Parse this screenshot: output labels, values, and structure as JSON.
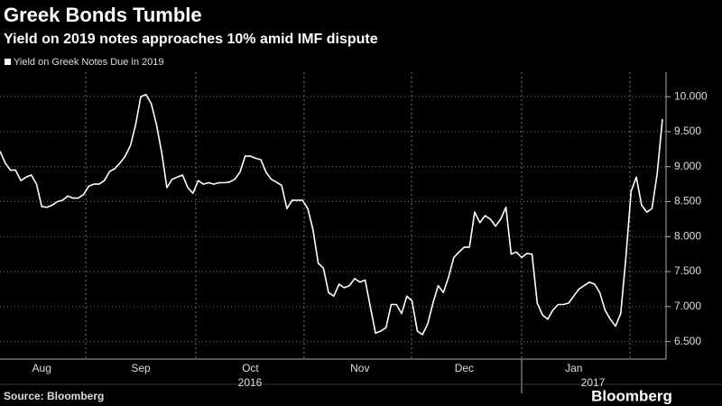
{
  "chart_data": {
    "type": "line",
    "title": "Greek Bonds Tumble",
    "subtitle": "Yield on 2019 notes approaches 10% amid IMF dispute",
    "source": "Source: Bloomberg",
    "brand": "Bloomberg",
    "categories": [
      null,
      null,
      null,
      null,
      null,
      null,
      null,
      null,
      "Aug",
      null,
      null,
      null,
      null,
      null,
      null,
      null,
      null,
      null,
      null,
      null,
      null,
      null,
      null,
      null,
      null,
      null,
      null,
      "Sep",
      null,
      null,
      null,
      null,
      null,
      null,
      null,
      null,
      null,
      null,
      null,
      null,
      null,
      null,
      null,
      null,
      null,
      null,
      null,
      null,
      "Oct",
      null,
      null,
      null,
      null,
      null,
      null,
      null,
      null,
      null,
      null,
      null,
      null,
      null,
      null,
      null,
      null,
      null,
      null,
      null,
      null,
      "Nov",
      null,
      null,
      null,
      null,
      null,
      null,
      null,
      null,
      null,
      null,
      null,
      null,
      null,
      null,
      null,
      null,
      null,
      null,
      null,
      "Dec",
      null,
      null,
      null,
      null,
      null,
      null,
      null,
      null,
      null,
      null,
      null,
      null,
      null,
      null,
      null,
      null,
      null,
      null,
      null,
      null,
      "Jan",
      null,
      null,
      null,
      null,
      null,
      null,
      null,
      null,
      null,
      null,
      null,
      null,
      null,
      null,
      null,
      null,
      null
    ],
    "x_groups": [
      "2016",
      "2017"
    ],
    "series": [
      {
        "name": "Yield on Greek Notes Due in 2019",
        "color": "#ffffff",
        "values": [
          9.22,
          9.05,
          8.95,
          8.95,
          8.8,
          8.85,
          8.88,
          8.75,
          8.43,
          8.42,
          8.45,
          8.5,
          8.52,
          8.58,
          8.55,
          8.55,
          8.6,
          8.72,
          8.75,
          8.75,
          8.8,
          8.93,
          8.97,
          9.05,
          9.15,
          9.3,
          9.6,
          10.0,
          10.03,
          9.9,
          9.6,
          9.2,
          8.7,
          8.82,
          8.85,
          8.88,
          8.7,
          8.62,
          8.8,
          8.75,
          8.77,
          8.75,
          8.77,
          8.77,
          8.78,
          8.82,
          8.92,
          9.15,
          9.15,
          9.12,
          9.1,
          8.92,
          8.82,
          8.78,
          8.73,
          8.4,
          8.52,
          8.52,
          8.52,
          8.4,
          8.1,
          7.62,
          7.55,
          7.2,
          7.15,
          7.32,
          7.27,
          7.3,
          7.4,
          7.35,
          7.38,
          7.0,
          6.62,
          6.65,
          6.7,
          7.03,
          7.03,
          6.9,
          7.15,
          7.08,
          6.65,
          6.6,
          6.75,
          7.05,
          7.3,
          7.2,
          7.42,
          7.7,
          7.78,
          7.85,
          7.85,
          8.35,
          8.2,
          8.3,
          8.25,
          8.15,
          8.25,
          8.42,
          7.75,
          7.78,
          7.7,
          7.76,
          7.75,
          7.05,
          6.88,
          6.82,
          6.95,
          7.03,
          7.03,
          7.05,
          7.15,
          7.25,
          7.3,
          7.35,
          7.32,
          7.2,
          6.95,
          6.82,
          6.72,
          6.9,
          7.7,
          8.65,
          8.85,
          8.45,
          8.35,
          8.4,
          8.9,
          9.68
        ]
      }
    ],
    "ylim": [
      6.25,
      10.35
    ],
    "yticks": [
      {
        "value": 6.5,
        "label": "6.500"
      },
      {
        "value": 7,
        "label": "7.000"
      },
      {
        "value": 7.5,
        "label": "7.500"
      },
      {
        "value": 8,
        "label": "8.000"
      },
      {
        "value": 8.5,
        "label": "8.500"
      },
      {
        "value": 9,
        "label": "9.000"
      },
      {
        "value": 9.5,
        "label": "9.500"
      },
      {
        "value": 10,
        "label": "10.000"
      }
    ],
    "grid": true
  }
}
